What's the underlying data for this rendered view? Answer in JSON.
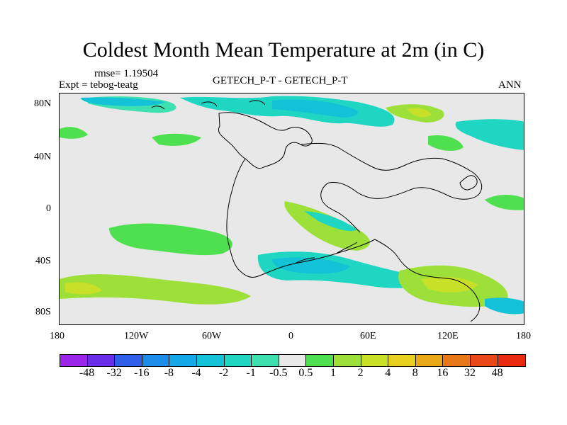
{
  "title": "Coldest Month Mean Temperature at 2m (in C)",
  "rmse": "rmse= 1.19504",
  "expt": "Expt = tebog-teatg",
  "center_label": "GETECH_P-T - GETECH_P-T",
  "right_label": "ANN",
  "lat_ticks": [
    "80N",
    "40N",
    "0",
    "40S",
    "80S"
  ],
  "lon_ticks": [
    "180",
    "120W",
    "60W",
    "0",
    "60E",
    "120E",
    "180"
  ],
  "colorbar": {
    "labels": [
      "-48",
      "-32",
      "-16",
      "-8",
      "-4",
      "-2",
      "-1",
      "-0.5",
      "0.5",
      "1",
      "2",
      "4",
      "8",
      "16",
      "32",
      "48"
    ],
    "colors": [
      "#9b25e8",
      "#6a2ee8",
      "#2f5fe8",
      "#1b8ce8",
      "#14a8e6",
      "#14c2d8",
      "#1ed6c2",
      "#3ee0b0",
      "#e8e8e8",
      "#4fe04f",
      "#9ee03a",
      "#c8e028",
      "#e8d020",
      "#e8a818",
      "#e87818",
      "#e84818",
      "#e82a10"
    ]
  },
  "map_colors": {
    "neutral": "#e8e8e8",
    "light_cool": "#3ee0b0",
    "cool": "#1ed6c2",
    "cooler": "#14c2d8",
    "light_warm": "#4fe04f",
    "warm": "#9ee03a",
    "warmer": "#c8e028",
    "warmest": "#e8d020"
  }
}
